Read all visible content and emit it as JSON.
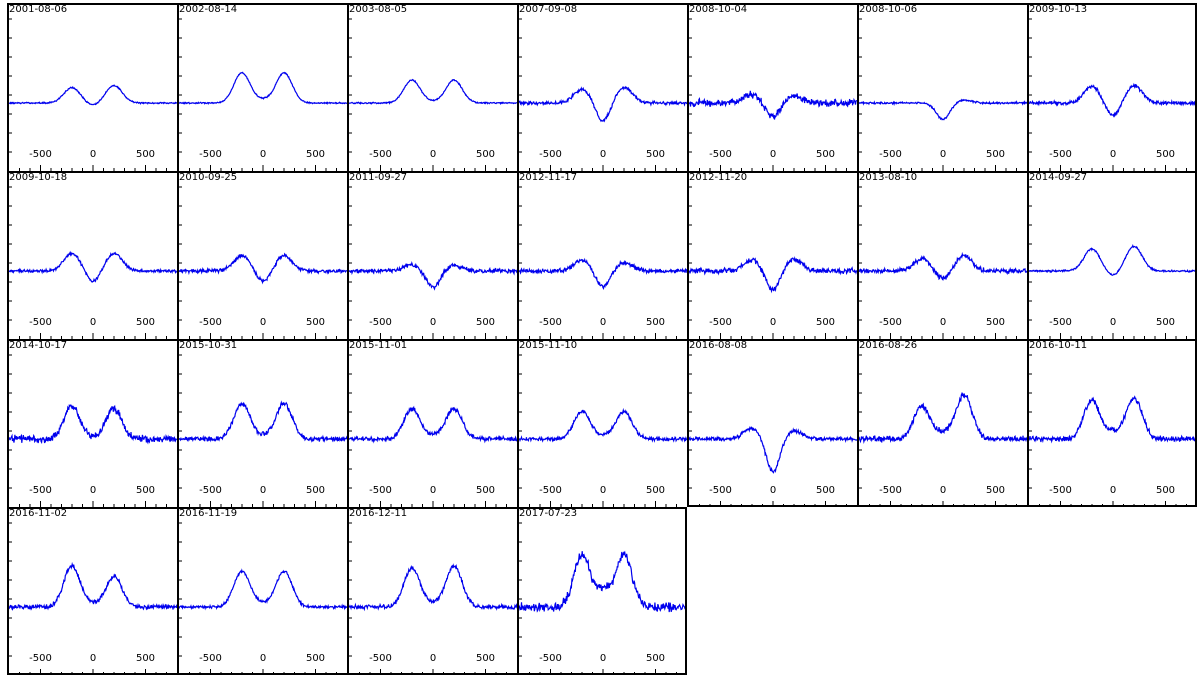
{
  "colors": {
    "line": "#0000ee",
    "frame": "#000000",
    "background": "#ffffff"
  },
  "chart_data": {
    "type": "line",
    "layout": "small multiples",
    "x_tick_labels": [
      "-500",
      "0",
      "500"
    ],
    "xlim": [
      -800,
      800
    ],
    "panels": [
      {
        "date": "2001-08-06",
        "shape": "double",
        "a1": 0.28,
        "a2": 0.32,
        "dip": -0.05,
        "noise": 0.015
      },
      {
        "date": "2002-08-14",
        "shape": "double",
        "a1": 0.55,
        "a2": 0.55,
        "dip": 0.05,
        "noise": 0.015
      },
      {
        "date": "2003-08-05",
        "shape": "double",
        "a1": 0.42,
        "a2": 0.42,
        "dip": 0.02,
        "noise": 0.015
      },
      {
        "date": "2007-09-08",
        "shape": "double",
        "a1": 0.25,
        "a2": 0.28,
        "dip": -0.35,
        "noise": 0.035
      },
      {
        "date": "2008-10-04",
        "shape": "double",
        "a1": 0.15,
        "a2": 0.12,
        "dip": -0.25,
        "noise": 0.08
      },
      {
        "date": "2008-10-06",
        "shape": "double",
        "a1": 0.0,
        "a2": 0.05,
        "dip": -0.3,
        "noise": 0.02
      },
      {
        "date": "2009-10-13",
        "shape": "double",
        "a1": 0.3,
        "a2": 0.32,
        "dip": -0.25,
        "noise": 0.04
      },
      {
        "date": "2009-10-18",
        "shape": "double",
        "a1": 0.32,
        "a2": 0.32,
        "dip": -0.2,
        "noise": 0.03
      },
      {
        "date": "2010-09-25",
        "shape": "double",
        "a1": 0.28,
        "a2": 0.28,
        "dip": -0.2,
        "noise": 0.04
      },
      {
        "date": "2011-09-27",
        "shape": "double",
        "a1": 0.12,
        "a2": 0.1,
        "dip": -0.3,
        "noise": 0.05
      },
      {
        "date": "2012-11-17",
        "shape": "double",
        "a1": 0.2,
        "a2": 0.15,
        "dip": -0.3,
        "noise": 0.05
      },
      {
        "date": "2012-11-20",
        "shape": "double",
        "a1": 0.2,
        "a2": 0.22,
        "dip": -0.35,
        "noise": 0.06
      },
      {
        "date": "2013-08-10",
        "shape": "double",
        "a1": 0.22,
        "a2": 0.28,
        "dip": -0.15,
        "noise": 0.05
      },
      {
        "date": "2014-09-27",
        "shape": "double",
        "a1": 0.4,
        "a2": 0.45,
        "dip": -0.1,
        "noise": 0.02
      },
      {
        "date": "2014-10-17",
        "shape": "double",
        "a1": 0.6,
        "a2": 0.55,
        "dip": 0.0,
        "noise": 0.08
      },
      {
        "date": "2015-10-31",
        "shape": "double",
        "a1": 0.65,
        "a2": 0.65,
        "dip": 0.05,
        "noise": 0.05
      },
      {
        "date": "2015-11-01",
        "shape": "double",
        "a1": 0.55,
        "a2": 0.55,
        "dip": 0.05,
        "noise": 0.05
      },
      {
        "date": "2015-11-10",
        "shape": "double",
        "a1": 0.5,
        "a2": 0.5,
        "dip": 0.05,
        "noise": 0.04
      },
      {
        "date": "2016-08-08",
        "shape": "double",
        "a1": 0.2,
        "a2": 0.15,
        "dip": -0.6,
        "noise": 0.04
      },
      {
        "date": "2016-08-26",
        "shape": "double",
        "a1": 0.6,
        "a2": 0.8,
        "dip": 0.1,
        "noise": 0.07
      },
      {
        "date": "2016-10-11",
        "shape": "double",
        "a1": 0.7,
        "a2": 0.75,
        "dip": 0.1,
        "noise": 0.06
      },
      {
        "date": "2016-11-02",
        "shape": "double",
        "a1": 0.75,
        "a2": 0.55,
        "dip": 0.05,
        "noise": 0.05
      },
      {
        "date": "2016-11-19",
        "shape": "double",
        "a1": 0.65,
        "a2": 0.65,
        "dip": 0.05,
        "noise": 0.03
      },
      {
        "date": "2016-12-11",
        "shape": "double",
        "a1": 0.7,
        "a2": 0.75,
        "dip": 0.05,
        "noise": 0.05
      },
      {
        "date": "2017-07-23",
        "shape": "double",
        "a1": 0.95,
        "a2": 0.95,
        "dip": 0.3,
        "noise": 0.1
      }
    ]
  }
}
